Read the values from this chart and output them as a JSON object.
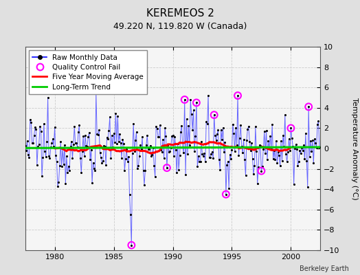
{
  "title": "KEREMEOS 2",
  "subtitle": "49.220 N, 119.820 W (Canada)",
  "ylabel": "Temperature Anomaly (°C)",
  "attribution": "Berkeley Earth",
  "ylim": [
    -10,
    10
  ],
  "xlim": [
    1977.5,
    2002.5
  ],
  "xticks": [
    1980,
    1985,
    1990,
    1995,
    2000
  ],
  "yticks": [
    -10,
    -8,
    -6,
    -4,
    -2,
    0,
    2,
    4,
    6,
    8,
    10
  ],
  "fig_bg_color": "#e0e0e0",
  "plot_bg_color": "#f5f5f5",
  "raw_line_color": "#6666ff",
  "raw_dot_color": "#000000",
  "ma_color": "#ff0000",
  "trend_color": "#00cc00",
  "qc_color": "#ff00ff",
  "grid_color": "#cccccc",
  "n_months": 300,
  "start_year": 1977.5,
  "qc_fail_times": [
    1986.5,
    1991.0,
    1989.5,
    1992.0,
    1993.5,
    1994.5,
    1995.5,
    1997.5,
    2000.0,
    2001.5
  ],
  "qc_fail_values": [
    -9.5,
    4.8,
    -1.9,
    4.5,
    3.3,
    -4.5,
    5.2,
    -2.2,
    2.0,
    4.1
  ]
}
